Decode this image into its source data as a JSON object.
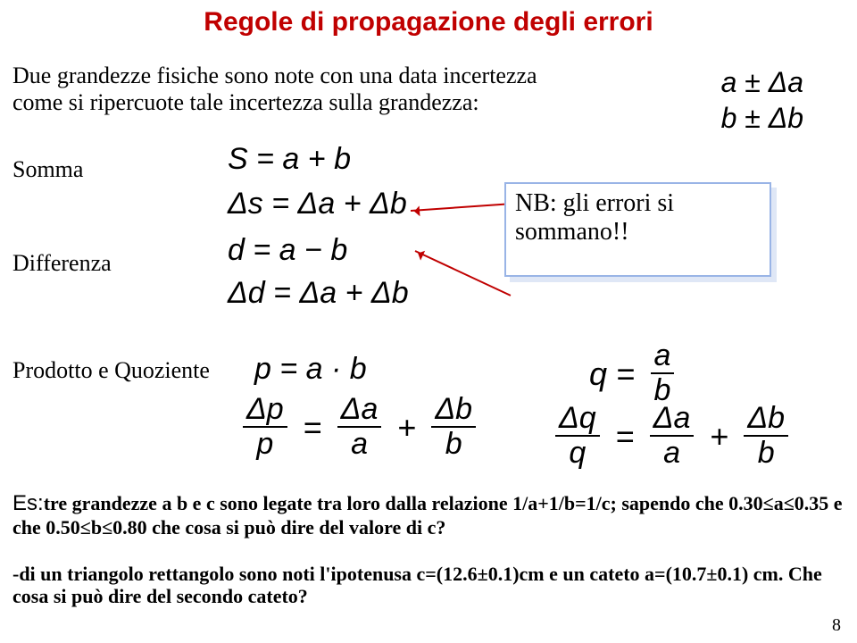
{
  "colors": {
    "title": "#c00000",
    "note_border": "#99b4e6",
    "note_shadow": "#dfe7f6",
    "text": "#000000",
    "bg": "#ffffff"
  },
  "fonts": {
    "title_family": "Comic Sans MS",
    "title_size_pt": 30,
    "body_family": "Times New Roman",
    "body_size_pt": 26,
    "eq_family": "Comic Sans MS",
    "eq_size_pt": 34
  },
  "title": "Regole di propagazione degli errori",
  "intro_l1": "Due grandezze fisiche sono note con una data incertezza",
  "intro_l2": "come si ripercuote tale incertezza sulla grandezza:",
  "givens": {
    "l1": "a ± Δa",
    "l2": "b ± Δb"
  },
  "labels": {
    "somma": "Somma",
    "diff": "Differenza",
    "prod": "Prodotto e Quoziente"
  },
  "eq_S1": "S = a + b",
  "eq_S2": "Δs = Δa + Δb",
  "eq_D1": "d = a − b",
  "eq_D2": "Δd = Δa + Δb",
  "note_l1": "NB: gli errori si",
  "note_l2": "sommano!!",
  "eq_P1": "p = a · b",
  "fracP": {
    "t1n": "Δp",
    "t1d": "p",
    "eq": "=",
    "t2n": "Δa",
    "t2d": "a",
    "plus": "+",
    "t3n": "Δb",
    "t3d": "b"
  },
  "fracQ1": {
    "lhs": "q =",
    "num": "a",
    "den": "b"
  },
  "fracQ2": {
    "t1n": "Δq",
    "t1d": "q",
    "eq": "=",
    "t2n": "Δa",
    "t2d": "a",
    "plus": "+",
    "t3n": "Δb",
    "t3d": "b"
  },
  "es_lead": "Es:",
  "es_text": "tre grandezze a b e c sono legate tra loro dalla relazione 1/a+1/b=1/c; sapendo che 0.30≤a≤0.35 e che 0.50≤b≤0.80 che cosa si può dire del valore di c?",
  "tri_text": "-di un  triangolo rettangolo sono noti l'ipotenusa c=(12.6±0.1)cm e un cateto a=(10.7±0.1) cm. Che cosa si può dire del secondo cateto?",
  "page_number": "8"
}
